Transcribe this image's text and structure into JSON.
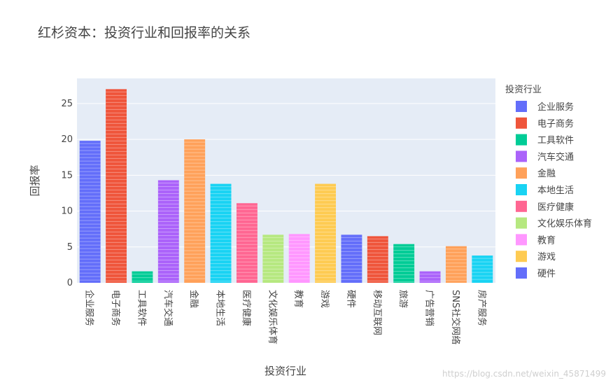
{
  "chart_data": {
    "type": "bar",
    "title": "红杉资本：投资行业和回报率的关系",
    "xlabel": "投资行业",
    "ylabel": "回报率",
    "ylim": [
      0,
      28.5
    ],
    "yticks": [
      0,
      5,
      10,
      15,
      20,
      25
    ],
    "grid": true,
    "legend_position": "right",
    "legend_title": "投资行业",
    "categories": [
      "企业服务",
      "电子商务",
      "工具软件",
      "汽车交通",
      "金融",
      "本地生活",
      "医疗健康",
      "文化娱乐体育",
      "教育",
      "游戏",
      "硬件",
      "移动互联网",
      "旅游",
      "广告营销",
      "SNS社交网络",
      "房产服务"
    ],
    "values": [
      19.8,
      27.0,
      1.6,
      14.3,
      20.0,
      13.8,
      11.1,
      6.7,
      6.8,
      13.8,
      6.7,
      6.5,
      5.4,
      1.6,
      5.1,
      3.8
    ],
    "colors": [
      "#636efa",
      "#ef553b",
      "#00cc96",
      "#ab63fa",
      "#ffa15a",
      "#19d3f3",
      "#ff6692",
      "#b6e880",
      "#ff97ff",
      "#fecb52",
      "#636efa",
      "#ef553b",
      "#00cc96",
      "#ab63fa",
      "#ffa15a",
      "#19d3f3"
    ],
    "legend": [
      {
        "name": "企业服务",
        "color": "#636efa"
      },
      {
        "name": "电子商务",
        "color": "#ef553b"
      },
      {
        "name": "工具软件",
        "color": "#00cc96"
      },
      {
        "name": "汽车交通",
        "color": "#ab63fa"
      },
      {
        "name": "金融",
        "color": "#ffa15a"
      },
      {
        "name": "本地生活",
        "color": "#19d3f3"
      },
      {
        "name": "医疗健康",
        "color": "#ff6692"
      },
      {
        "name": "文化娱乐体育",
        "color": "#b6e880"
      },
      {
        "name": "教育",
        "color": "#ff97ff"
      },
      {
        "name": "游戏",
        "color": "#fecb52"
      },
      {
        "name": "硬件",
        "color": "#636efa"
      }
    ]
  },
  "watermark": "https://blog.csdn.net/weixin_45871499",
  "theme": {
    "plot_bg": "#e5ecf6",
    "grid": "#ffffff",
    "text": "#444444"
  }
}
